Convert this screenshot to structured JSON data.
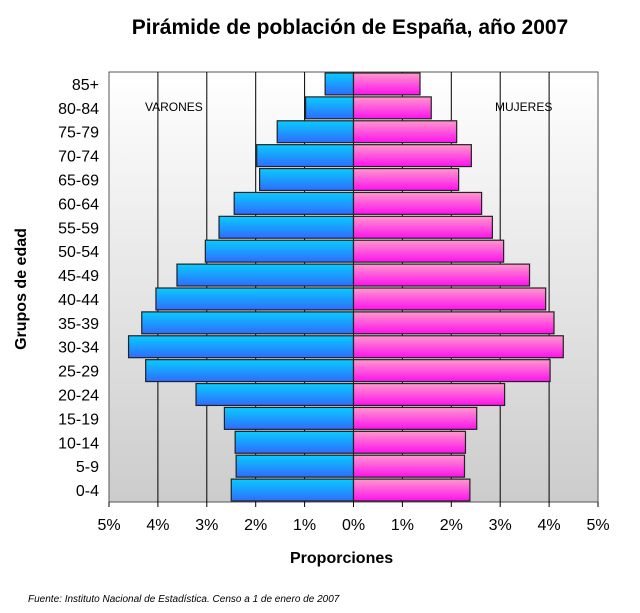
{
  "chart_data": {
    "type": "bar",
    "orientation": "horizontal-pyramid",
    "title": "Pirámide de población de España, año 2007",
    "xlabel": "Proporciones",
    "ylabel": "Grupos de edad",
    "categories": [
      "85+",
      "80-84",
      "75-79",
      "70-74",
      "65-69",
      "60-64",
      "55-59",
      "50-54",
      "45-49",
      "40-44",
      "35-39",
      "30-34",
      "25-29",
      "20-24",
      "15-19",
      "10-14",
      "5-9",
      "0-4"
    ],
    "series": [
      {
        "name": "VARONES",
        "color": "#1ea0ff",
        "values": [
          0.58,
          0.98,
          1.56,
          1.98,
          1.92,
          2.44,
          2.75,
          3.03,
          3.61,
          4.04,
          4.33,
          4.6,
          4.25,
          3.22,
          2.64,
          2.42,
          2.4,
          2.5
        ]
      },
      {
        "name": "MUJERES",
        "color": "#ff55dd",
        "values": [
          1.36,
          1.59,
          2.11,
          2.41,
          2.15,
          2.62,
          2.84,
          3.07,
          3.6,
          3.93,
          4.1,
          4.29,
          4.02,
          3.09,
          2.52,
          2.29,
          2.27,
          2.38
        ]
      }
    ],
    "xlim": [
      -5,
      5
    ],
    "xticks": [
      "5%",
      "4%",
      "3%",
      "2%",
      "1%",
      "0%",
      "1%",
      "2%",
      "3%",
      "4%",
      "5%"
    ],
    "grid": "vertical",
    "source": "Fuente: Instituto Nacional de Estadística. Censo a 1 de enero de 2007"
  }
}
